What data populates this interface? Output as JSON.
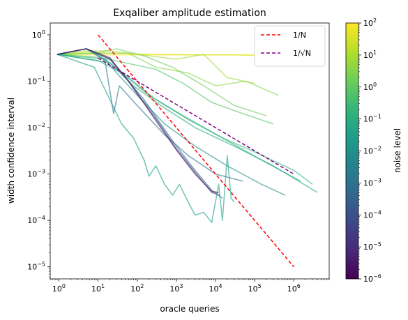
{
  "chart_data": {
    "type": "line",
    "title": "Exqaliber amplitude estimation",
    "xlabel": "oracle queries",
    "ylabel": "width confidence interval",
    "xscale": "log",
    "yscale": "log",
    "xlim": [
      0.6,
      8000000
    ],
    "ylim": [
      5.5e-06,
      1.8
    ],
    "xticks": [
      {
        "value": 1,
        "label": "10",
        "exp": "0"
      },
      {
        "value": 10,
        "label": "10",
        "exp": "1"
      },
      {
        "value": 100,
        "label": "10",
        "exp": "2"
      },
      {
        "value": 1000,
        "label": "10",
        "exp": "3"
      },
      {
        "value": 10000,
        "label": "10",
        "exp": "4"
      },
      {
        "value": 100000,
        "label": "10",
        "exp": "5"
      },
      {
        "value": 1000000,
        "label": "10",
        "exp": "6"
      }
    ],
    "yticks": [
      {
        "value": 1e-05,
        "label": "10",
        "exp": "−5"
      },
      {
        "value": 0.0001,
        "label": "10",
        "exp": "−4"
      },
      {
        "value": 0.001,
        "label": "10",
        "exp": "−3"
      },
      {
        "value": 0.01,
        "label": "10",
        "exp": "−2"
      },
      {
        "value": 0.1,
        "label": "10",
        "exp": "−1"
      },
      {
        "value": 1,
        "label": "10",
        "exp": "0"
      }
    ],
    "grid": false,
    "legend": {
      "placement": "top-right",
      "entries": [
        {
          "label": "1/N",
          "style": "dashed",
          "color": "#ff0000",
          "series": "inverse-n"
        },
        {
          "label": "1/√N",
          "style": "dashed",
          "color": "#800080",
          "series": "inverse-sqrt-n"
        }
      ]
    },
    "reference_lines": [
      {
        "id": "inverse-n",
        "color": "#ff0000",
        "x": [
          10,
          1000000
        ],
        "y": [
          1,
          1e-05
        ]
      },
      {
        "id": "inverse-sqrt-n",
        "color": "#800080",
        "x": [
          10,
          1000000
        ],
        "y": [
          0.3162,
          0.001
        ]
      }
    ],
    "series": [
      {
        "noise": 100,
        "color": "#fde725",
        "points": [
          [
            0.9,
            0.37
          ],
          [
            3,
            0.37
          ],
          [
            10,
            0.37
          ],
          [
            100,
            0.37
          ],
          [
            1000,
            0.37
          ],
          [
            10000,
            0.37
          ],
          [
            100000,
            0.37
          ]
        ]
      },
      {
        "noise": 10,
        "color": "#d2e21b",
        "points": [
          [
            0.9,
            0.38
          ],
          [
            5,
            0.42
          ],
          [
            30,
            0.4
          ],
          [
            300,
            0.38
          ],
          [
            3000,
            0.37
          ],
          [
            30000,
            0.37
          ],
          [
            100000,
            0.36
          ]
        ]
      },
      {
        "noise": 2,
        "color": "#a0da39",
        "points": [
          [
            0.9,
            0.38
          ],
          [
            5,
            0.45
          ],
          [
            20,
            0.45
          ],
          [
            100,
            0.38
          ],
          [
            1000,
            0.3
          ],
          [
            5000,
            0.38
          ],
          [
            20000,
            0.12
          ],
          [
            100000,
            0.09
          ]
        ]
      },
      {
        "noise": 1.2,
        "color": "#86d549",
        "points": [
          [
            0.9,
            0.38
          ],
          [
            10,
            0.4
          ],
          [
            60,
            0.4
          ],
          [
            300,
            0.2
          ],
          [
            2000,
            0.15
          ],
          [
            10000,
            0.08
          ],
          [
            60000,
            0.1
          ],
          [
            400000,
            0.05
          ]
        ]
      },
      {
        "noise": 0.8,
        "color": "#6ece58",
        "points": [
          [
            0.9,
            0.38
          ],
          [
            8,
            0.4
          ],
          [
            30,
            0.5
          ],
          [
            150,
            0.35
          ],
          [
            800,
            0.2
          ],
          [
            5000,
            0.08
          ],
          [
            30000,
            0.03
          ],
          [
            200000,
            0.018
          ]
        ]
      },
      {
        "noise": 0.5,
        "color": "#52c569",
        "points": [
          [
            0.9,
            0.38
          ],
          [
            10,
            0.33
          ],
          [
            50,
            0.25
          ],
          [
            300,
            0.18
          ],
          [
            1500,
            0.09
          ],
          [
            8000,
            0.035
          ],
          [
            50000,
            0.02
          ],
          [
            300000,
            0.012
          ]
        ]
      },
      {
        "noise": 0.2,
        "color": "#35b779",
        "points": [
          [
            0.9,
            0.38
          ],
          [
            15,
            0.3
          ],
          [
            60,
            0.12
          ],
          [
            300,
            0.04
          ],
          [
            2000,
            0.015
          ],
          [
            15000,
            0.006
          ],
          [
            100000,
            0.003
          ],
          [
            1000000,
            0.0012
          ],
          [
            3000000,
            0.0006
          ]
        ]
      },
      {
        "noise": 0.1,
        "color": "#29af7f",
        "points": [
          [
            0.9,
            0.38
          ],
          [
            20,
            0.25
          ],
          [
            80,
            0.08
          ],
          [
            400,
            0.03
          ],
          [
            3000,
            0.01
          ],
          [
            30000,
            0.004
          ],
          [
            300000,
            0.0015
          ],
          [
            4000000,
            0.0004
          ]
        ]
      },
      {
        "noise": 0.05,
        "color": "#22a884",
        "points": [
          [
            0.9,
            0.38
          ],
          [
            10,
            0.28
          ],
          [
            40,
            0.15
          ],
          [
            200,
            0.05
          ],
          [
            1500,
            0.018
          ],
          [
            15000,
            0.006
          ],
          [
            150000,
            0.002
          ],
          [
            1500000,
            0.0007
          ]
        ]
      },
      {
        "noise": 0.02,
        "color": "#1fa187",
        "points": [
          [
            0.9,
            0.38
          ],
          [
            8,
            0.2
          ],
          [
            20,
            0.04
          ],
          [
            40,
            0.012
          ],
          [
            80,
            0.006
          ],
          [
            150,
            0.002
          ],
          [
            200,
            0.0009
          ],
          [
            300,
            0.0015
          ],
          [
            500,
            0.0006
          ],
          [
            800,
            0.00035
          ],
          [
            1200,
            0.0006
          ],
          [
            2000,
            0.00025
          ],
          [
            3000,
            0.00013
          ],
          [
            5000,
            0.00015
          ],
          [
            8000,
            9e-05
          ],
          [
            12000,
            0.0006
          ],
          [
            15000,
            0.0001
          ],
          [
            20000,
            0.0025
          ],
          [
            25000,
            0.0003
          ],
          [
            30000,
            0.00025
          ]
        ]
      },
      {
        "noise": 0.01,
        "color": "#21918c",
        "points": [
          [
            0.9,
            0.38
          ],
          [
            5,
            0.5
          ],
          [
            15,
            0.3
          ],
          [
            30,
            0.15
          ],
          [
            100,
            0.05
          ],
          [
            500,
            0.012
          ],
          [
            3000,
            0.004
          ],
          [
            20000,
            0.0015
          ],
          [
            150000,
            0.0006
          ],
          [
            600000,
            0.00035
          ]
        ]
      },
      {
        "noise": 0.003,
        "color": "#2a788e",
        "points": [
          [
            0.9,
            0.38
          ],
          [
            5,
            0.5
          ],
          [
            15,
            0.28
          ],
          [
            25,
            0.02
          ],
          [
            35,
            0.08
          ],
          [
            100,
            0.03
          ],
          [
            500,
            0.007
          ],
          [
            2000,
            0.0025
          ],
          [
            10000,
            0.001
          ],
          [
            50000,
            0.0007
          ]
        ]
      },
      {
        "noise": 0.0005,
        "color": "#31688e",
        "points": [
          [
            0.9,
            0.38
          ],
          [
            5,
            0.5
          ],
          [
            20,
            0.3
          ],
          [
            60,
            0.1
          ],
          [
            150,
            0.04
          ],
          [
            400,
            0.012
          ],
          [
            1000,
            0.004
          ],
          [
            3000,
            0.0012
          ],
          [
            8000,
            0.00045
          ],
          [
            15000,
            0.0003
          ]
        ]
      },
      {
        "noise": 5e-05,
        "color": "#3b528b",
        "points": [
          [
            0.9,
            0.38
          ],
          [
            5,
            0.5
          ],
          [
            20,
            0.3
          ],
          [
            60,
            0.1
          ],
          [
            150,
            0.035
          ],
          [
            400,
            0.011
          ],
          [
            1000,
            0.0035
          ],
          [
            3000,
            0.0011
          ],
          [
            8000,
            0.0004
          ],
          [
            13000,
            0.00035
          ]
        ]
      },
      {
        "noise": 2e-06,
        "color": "#440154",
        "points": [
          [
            0.9,
            0.38
          ],
          [
            5,
            0.5
          ],
          [
            20,
            0.32
          ],
          [
            60,
            0.1
          ],
          [
            150,
            0.033
          ],
          [
            400,
            0.01
          ],
          [
            1000,
            0.0033
          ],
          [
            3000,
            0.001
          ],
          [
            8000,
            0.00042
          ],
          [
            12000,
            0.0004
          ]
        ]
      }
    ],
    "colorbar": {
      "label": "noise level",
      "scale": "log",
      "range": [
        1e-06,
        100
      ],
      "colormap": [
        "#440154",
        "#482878",
        "#3e4989",
        "#31688e",
        "#26828e",
        "#1f9e89",
        "#35b779",
        "#6ece58",
        "#b5de2b",
        "#fde725"
      ],
      "ticks": [
        {
          "value": 1e-06,
          "label": "10",
          "exp": "−6"
        },
        {
          "value": 1e-05,
          "label": "10",
          "exp": "−5"
        },
        {
          "value": 0.0001,
          "label": "10",
          "exp": "−4"
        },
        {
          "value": 0.001,
          "label": "10",
          "exp": "−3"
        },
        {
          "value": 0.01,
          "label": "10",
          "exp": "−2"
        },
        {
          "value": 0.1,
          "label": "10",
          "exp": "−1"
        },
        {
          "value": 1,
          "label": "10",
          "exp": "0"
        },
        {
          "value": 10,
          "label": "10",
          "exp": "1"
        },
        {
          "value": 100,
          "label": "10",
          "exp": "2"
        }
      ]
    }
  }
}
